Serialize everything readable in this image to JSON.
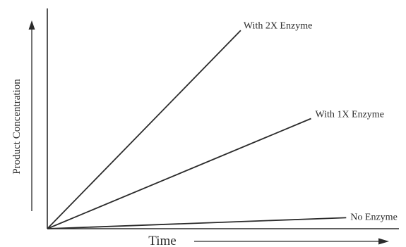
{
  "chart_data": {
    "type": "line",
    "xlabel": "Time",
    "ylabel": "Product Concentration",
    "xlim": [
      0,
      1
    ],
    "ylim": [
      0,
      1
    ],
    "grid": false,
    "legend": "none",
    "series": [
      {
        "name": "With 2X Enzyme",
        "x": [
          0,
          0.55
        ],
        "y": [
          0,
          0.9
        ]
      },
      {
        "name": "With 1X Enzyme",
        "x": [
          0,
          0.75
        ],
        "y": [
          0,
          0.5
        ]
      },
      {
        "name": "No Enzyme",
        "x": [
          0,
          0.85
        ],
        "y": [
          0,
          0.05
        ]
      }
    ]
  },
  "colors": {
    "ink": "#2b2b2b",
    "background": "#ffffff"
  }
}
